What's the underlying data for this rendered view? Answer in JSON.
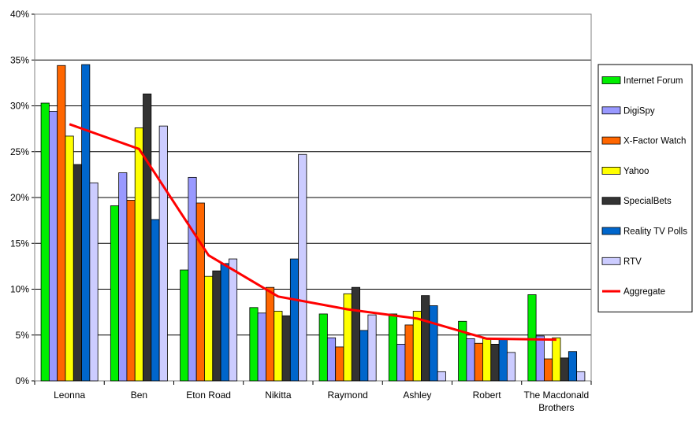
{
  "chart_data": {
    "type": "bar",
    "categories": [
      "Leonna",
      "Ben",
      "Eton Road",
      "Nikitta",
      "Raymond",
      "Ashley",
      "Robert",
      "The Macdonald Brothers"
    ],
    "ylim": [
      0,
      40
    ],
    "yticks": [
      "0%",
      "5%",
      "10%",
      "15%",
      "20%",
      "25%",
      "30%",
      "35%",
      "40%"
    ],
    "grid": true,
    "legend_position": "right",
    "series": [
      {
        "name": "Internet Forum",
        "color": "#00ee00",
        "values": [
          30.3,
          19.1,
          12.1,
          8.0,
          7.3,
          7.3,
          6.5,
          9.4
        ]
      },
      {
        "name": "DigiSpy",
        "color": "#9999ff",
        "values": [
          29.4,
          22.7,
          22.2,
          7.4,
          4.7,
          4.0,
          4.6,
          4.9
        ]
      },
      {
        "name": "X-Factor Watch",
        "color": "#ff6600",
        "values": [
          34.4,
          19.7,
          19.4,
          10.2,
          3.7,
          6.1,
          4.1,
          2.4
        ]
      },
      {
        "name": "Yahoo",
        "color": "#ffff00",
        "values": [
          26.7,
          27.6,
          11.4,
          7.6,
          9.5,
          7.6,
          4.6,
          4.7
        ]
      },
      {
        "name": "SpecialBets",
        "color": "#333333",
        "values": [
          23.6,
          31.3,
          12.0,
          7.1,
          10.2,
          9.3,
          4.0,
          2.5
        ]
      },
      {
        "name": "Reality TV Polls",
        "color": "#0066cc",
        "values": [
          34.5,
          17.6,
          12.8,
          13.3,
          5.5,
          8.2,
          4.6,
          3.2
        ]
      },
      {
        "name": "RTV",
        "color": "#ccccff",
        "values": [
          21.6,
          27.8,
          13.3,
          24.7,
          7.2,
          1.0,
          3.1,
          1.0
        ]
      }
    ],
    "line_series": {
      "name": "Aggregate",
      "color": "#ff0000",
      "values": [
        28.0,
        25.3,
        13.7,
        9.2,
        7.8,
        6.8,
        4.6,
        4.5
      ]
    }
  }
}
